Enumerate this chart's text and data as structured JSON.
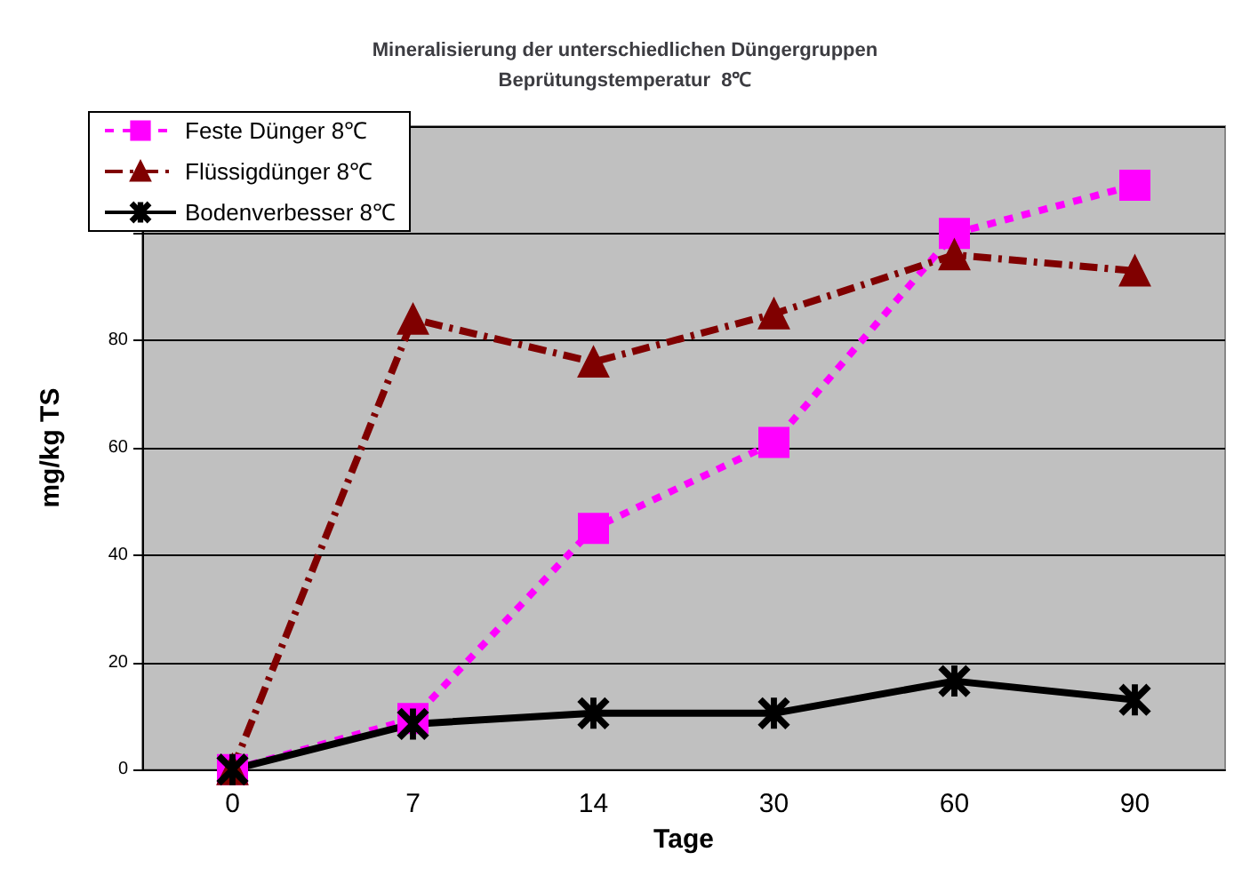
{
  "chart_data": {
    "type": "line",
    "title": "Mineralisierung der unterschiedlichen Düngergruppen",
    "subtitle": "Beprütungstemperatur  8℃",
    "xlabel": "Tage",
    "ylabel": "mg/kg TS",
    "categories": [
      "0",
      "7",
      "14",
      "30",
      "60",
      "90"
    ],
    "series": [
      {
        "name": "Feste Dünger 8℃",
        "color": "#ff00ff",
        "marker": "square",
        "line_style": "dotted",
        "values": [
          0,
          9.5,
          45,
          61,
          100,
          109
        ]
      },
      {
        "name": "Flüssigdünger 8℃",
        "color": "#800000",
        "marker": "triangle",
        "line_style": "dashed",
        "values": [
          0,
          84,
          76,
          85,
          96,
          93
        ]
      },
      {
        "name": "Bodenverbesser 8℃",
        "color": "#000000",
        "marker": "cross",
        "line_style": "solid",
        "values": [
          0,
          8.5,
          10.5,
          10.5,
          16.5,
          13
        ]
      }
    ],
    "ylim": [
      0,
      120
    ],
    "yticks": [
      0,
      20,
      40,
      60,
      80,
      {
        "value": 100,
        "label": null
      },
      {
        "value": 120,
        "label": null
      }
    ],
    "grid": "y",
    "legend": "top left"
  }
}
